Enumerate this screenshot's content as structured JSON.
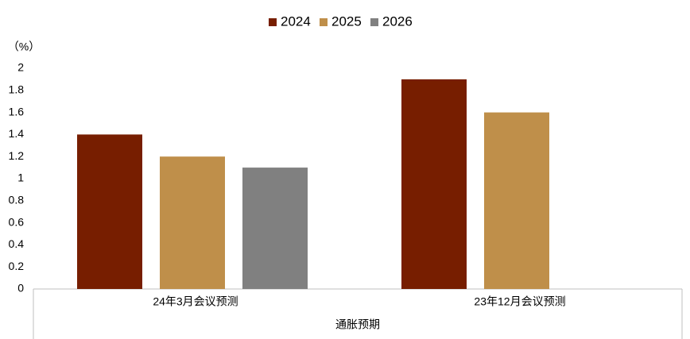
{
  "chart_data": {
    "type": "bar",
    "y_label": "（%）",
    "x_group_label": "通胀预期",
    "categories": [
      "24年3月会议预测",
      "23年12月会议预测"
    ],
    "series": [
      {
        "name": "2024",
        "color": "#771e00",
        "values": [
          1.4,
          1.9
        ]
      },
      {
        "name": "2025",
        "color": "#bf8f4a",
        "values": [
          1.2,
          1.6
        ]
      },
      {
        "name": "2026",
        "color": "#808080",
        "values": [
          1.1,
          null
        ]
      }
    ],
    "ylim": [
      0,
      2
    ],
    "yticks": [
      0,
      0.2,
      0.4,
      0.6,
      0.8,
      1,
      1.2,
      1.4,
      1.6,
      1.8,
      2
    ],
    "grid": false,
    "legend": "top"
  }
}
